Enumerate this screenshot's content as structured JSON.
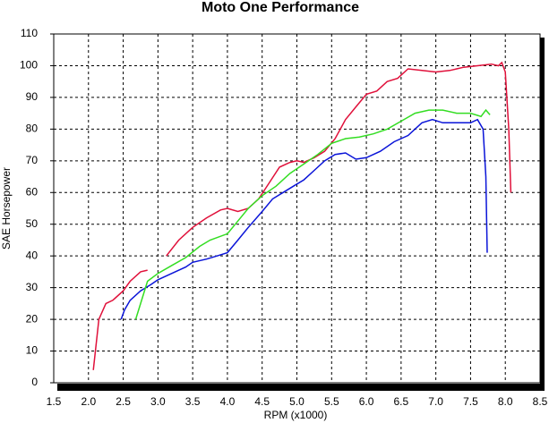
{
  "chart_data": {
    "type": "line",
    "title": "Moto One Performance",
    "x_label": "RPM (x1000)",
    "y_label": "SAE Horsepower",
    "xlim": [
      1.5,
      8.5
    ],
    "xticks": [
      1.5,
      {
        "value": 2,
        "label": "2.0"
      },
      2.5,
      {
        "value": 3,
        "label": "3.0"
      },
      3.5,
      {
        "value": 4,
        "label": "4.0"
      },
      4.5,
      {
        "value": 5,
        "label": "5.0"
      },
      5.5,
      {
        "value": 6,
        "label": "6.0"
      },
      6.5,
      {
        "value": 7,
        "label": "7.0"
      },
      7.5,
      {
        "value": 8,
        "label": "8.0"
      },
      8.5
    ],
    "ylim": [
      0,
      110
    ],
    "yticks": [
      0,
      10,
      20,
      30,
      40,
      50,
      60,
      70,
      80,
      90,
      100,
      110
    ],
    "grid": true,
    "series": [
      {
        "color": "#e0103a",
        "x": [
          2.07,
          2.15,
          2.25,
          2.35,
          2.5,
          2.6,
          2.75,
          2.85,
          3.0,
          3.12,
          3.3,
          3.5,
          3.7,
          3.9,
          4.0,
          4.15,
          4.3,
          4.45,
          4.6,
          4.75,
          4.9,
          5.0,
          5.1,
          5.25,
          5.4,
          5.55,
          5.7,
          5.85,
          6.0,
          6.15,
          6.3,
          6.45,
          6.6,
          6.8,
          7.0,
          7.2,
          7.4,
          7.6,
          7.8,
          7.9,
          7.95,
          8.0,
          8.05,
          8.08
        ],
        "values": [
          4,
          20,
          25,
          26,
          29,
          32,
          35,
          35.5,
          null,
          40,
          45,
          49,
          52,
          54.5,
          55,
          54,
          55,
          58,
          63,
          68,
          69.5,
          70,
          69.5,
          71,
          73,
          77,
          83,
          87,
          91,
          92,
          95,
          96,
          99,
          98.5,
          98,
          98.5,
          99.5,
          100,
          100.5,
          100,
          101,
          98,
          80,
          60
        ]
      },
      {
        "color": "#0a14d8",
        "x": [
          2.47,
          2.52,
          2.6,
          2.75,
          2.9,
          3.0,
          3.2,
          3.4,
          3.5,
          3.7,
          3.85,
          4.0,
          4.15,
          4.3,
          4.5,
          4.65,
          4.8,
          4.95,
          5.1,
          5.25,
          5.4,
          5.55,
          5.7,
          5.85,
          6.0,
          6.2,
          6.4,
          6.6,
          6.8,
          6.95,
          7.1,
          7.3,
          7.5,
          7.6,
          7.68,
          7.72,
          7.74
        ],
        "values": [
          20,
          23,
          26,
          29,
          31,
          32.5,
          34.5,
          36.5,
          38,
          39,
          40,
          41,
          45,
          49,
          54,
          58,
          60,
          62,
          64,
          67,
          70,
          72,
          72.5,
          70.5,
          71,
          73,
          76,
          78,
          82,
          83,
          82,
          82,
          82,
          83,
          80,
          65,
          41
        ]
      },
      {
        "color": "#33dd22",
        "x": [
          2.68,
          2.75,
          2.85,
          3.0,
          3.2,
          3.4,
          3.6,
          3.75,
          4.0,
          4.15,
          4.3,
          4.5,
          4.7,
          4.9,
          5.1,
          5.3,
          5.5,
          5.7,
          5.9,
          6.1,
          6.3,
          6.5,
          6.7,
          6.9,
          7.1,
          7.3,
          7.5,
          7.65,
          7.72,
          7.78
        ],
        "values": [
          20,
          25,
          32,
          34.5,
          37,
          39.5,
          43,
          45,
          47,
          51,
          55,
          59,
          62,
          66,
          69,
          72,
          75.5,
          77,
          77.5,
          78.5,
          80,
          82.5,
          85,
          86,
          86,
          85,
          85,
          84,
          86,
          84.5
        ]
      }
    ]
  }
}
